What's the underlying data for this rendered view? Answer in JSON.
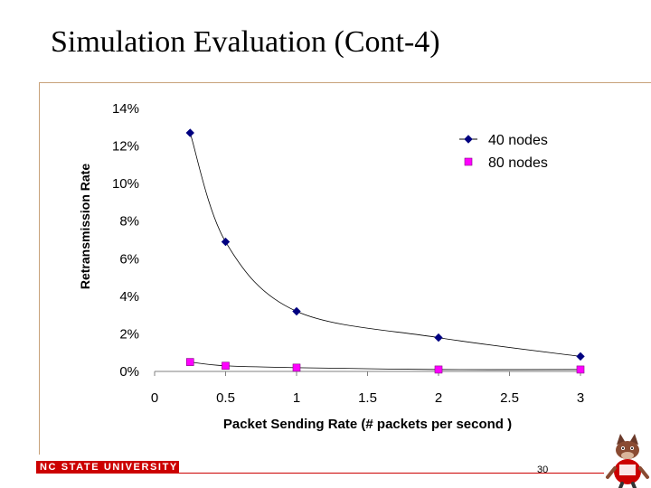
{
  "slide": {
    "title": "Simulation Evaluation (Cont-4)",
    "page_number": "30"
  },
  "footer": {
    "university": "NC STATE UNIVERSITY",
    "brand_color": "#cc0000",
    "mascot_icon": "wolf-mascot-icon"
  },
  "chart_data": {
    "type": "scatter",
    "xlabel": "Packet Sending Rate (# packets per second )",
    "ylabel": "Retransmission Rate",
    "xlim": [
      0,
      3
    ],
    "ylim": [
      0,
      14
    ],
    "x_ticks": [
      0,
      0.5,
      1,
      1.5,
      2,
      2.5,
      3
    ],
    "x_tick_labels": [
      "0",
      "0.5",
      "1",
      "1.5",
      "2",
      "2.5",
      "3"
    ],
    "y_ticks": [
      0,
      2,
      4,
      6,
      8,
      10,
      12,
      14
    ],
    "y_tick_labels": [
      "0%",
      "2%",
      "4%",
      "6%",
      "8%",
      "10%",
      "12%",
      "14%"
    ],
    "grid": false,
    "legend_position": "top-right",
    "series": [
      {
        "name": "40 nodes",
        "marker": "diamond",
        "color": "#000080",
        "line": "smooth",
        "x": [
          0.25,
          0.5,
          1,
          2,
          3
        ],
        "y": [
          12.7,
          6.9,
          3.2,
          1.8,
          0.8
        ]
      },
      {
        "name": "80 nodes",
        "marker": "square",
        "color": "#ff00ff",
        "line": "smooth",
        "x": [
          0.25,
          0.5,
          1,
          2,
          3
        ],
        "y": [
          0.5,
          0.3,
          0.2,
          0.1,
          0.1
        ]
      }
    ]
  }
}
